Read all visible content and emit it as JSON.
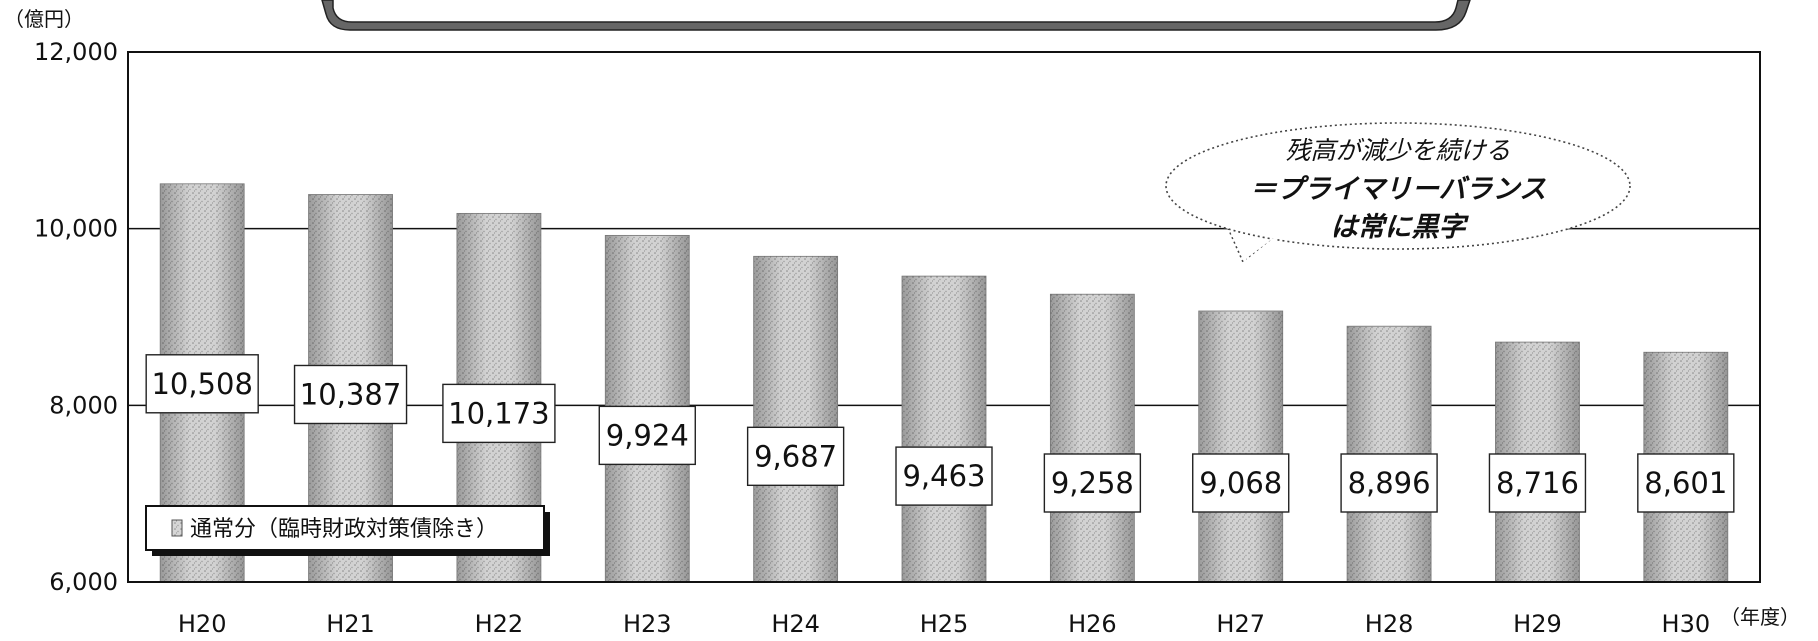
{
  "chart_data": {
    "type": "bar",
    "y_unit_label": "（億円）",
    "x_unit_label": "（年度）",
    "categories": [
      "H20",
      "H21",
      "H22",
      "H23",
      "H24",
      "H25",
      "H26",
      "H27",
      "H28",
      "H29",
      "H30"
    ],
    "series": [
      {
        "name": "通常分（臨時財政対策債除き）",
        "values": [
          10508,
          10387,
          10173,
          9924,
          9687,
          9463,
          9258,
          9068,
          8896,
          8716,
          8601
        ],
        "data_labels": [
          "10,508",
          "10,387",
          "10,173",
          "9,924",
          "9,687",
          "9,463",
          "9,258",
          "9,068",
          "8,896",
          "8,716",
          "8,601"
        ]
      }
    ],
    "ylim": [
      6000,
      12000
    ],
    "yticks": [
      6000,
      8000,
      10000,
      12000
    ],
    "ytick_labels": [
      "6,000",
      "8,000",
      "10,000",
      "12,000"
    ],
    "grid": true,
    "legend_position": "bottom-left",
    "annotation": {
      "lines": [
        "残高が減少を続ける",
        "＝プライマリーバランス",
        "は常に黒字"
      ]
    },
    "colors": {
      "bar": "#c8c8c8",
      "bar_dark": "#9a9a9a",
      "axis": "#111111",
      "callout_border": "#444444"
    }
  }
}
